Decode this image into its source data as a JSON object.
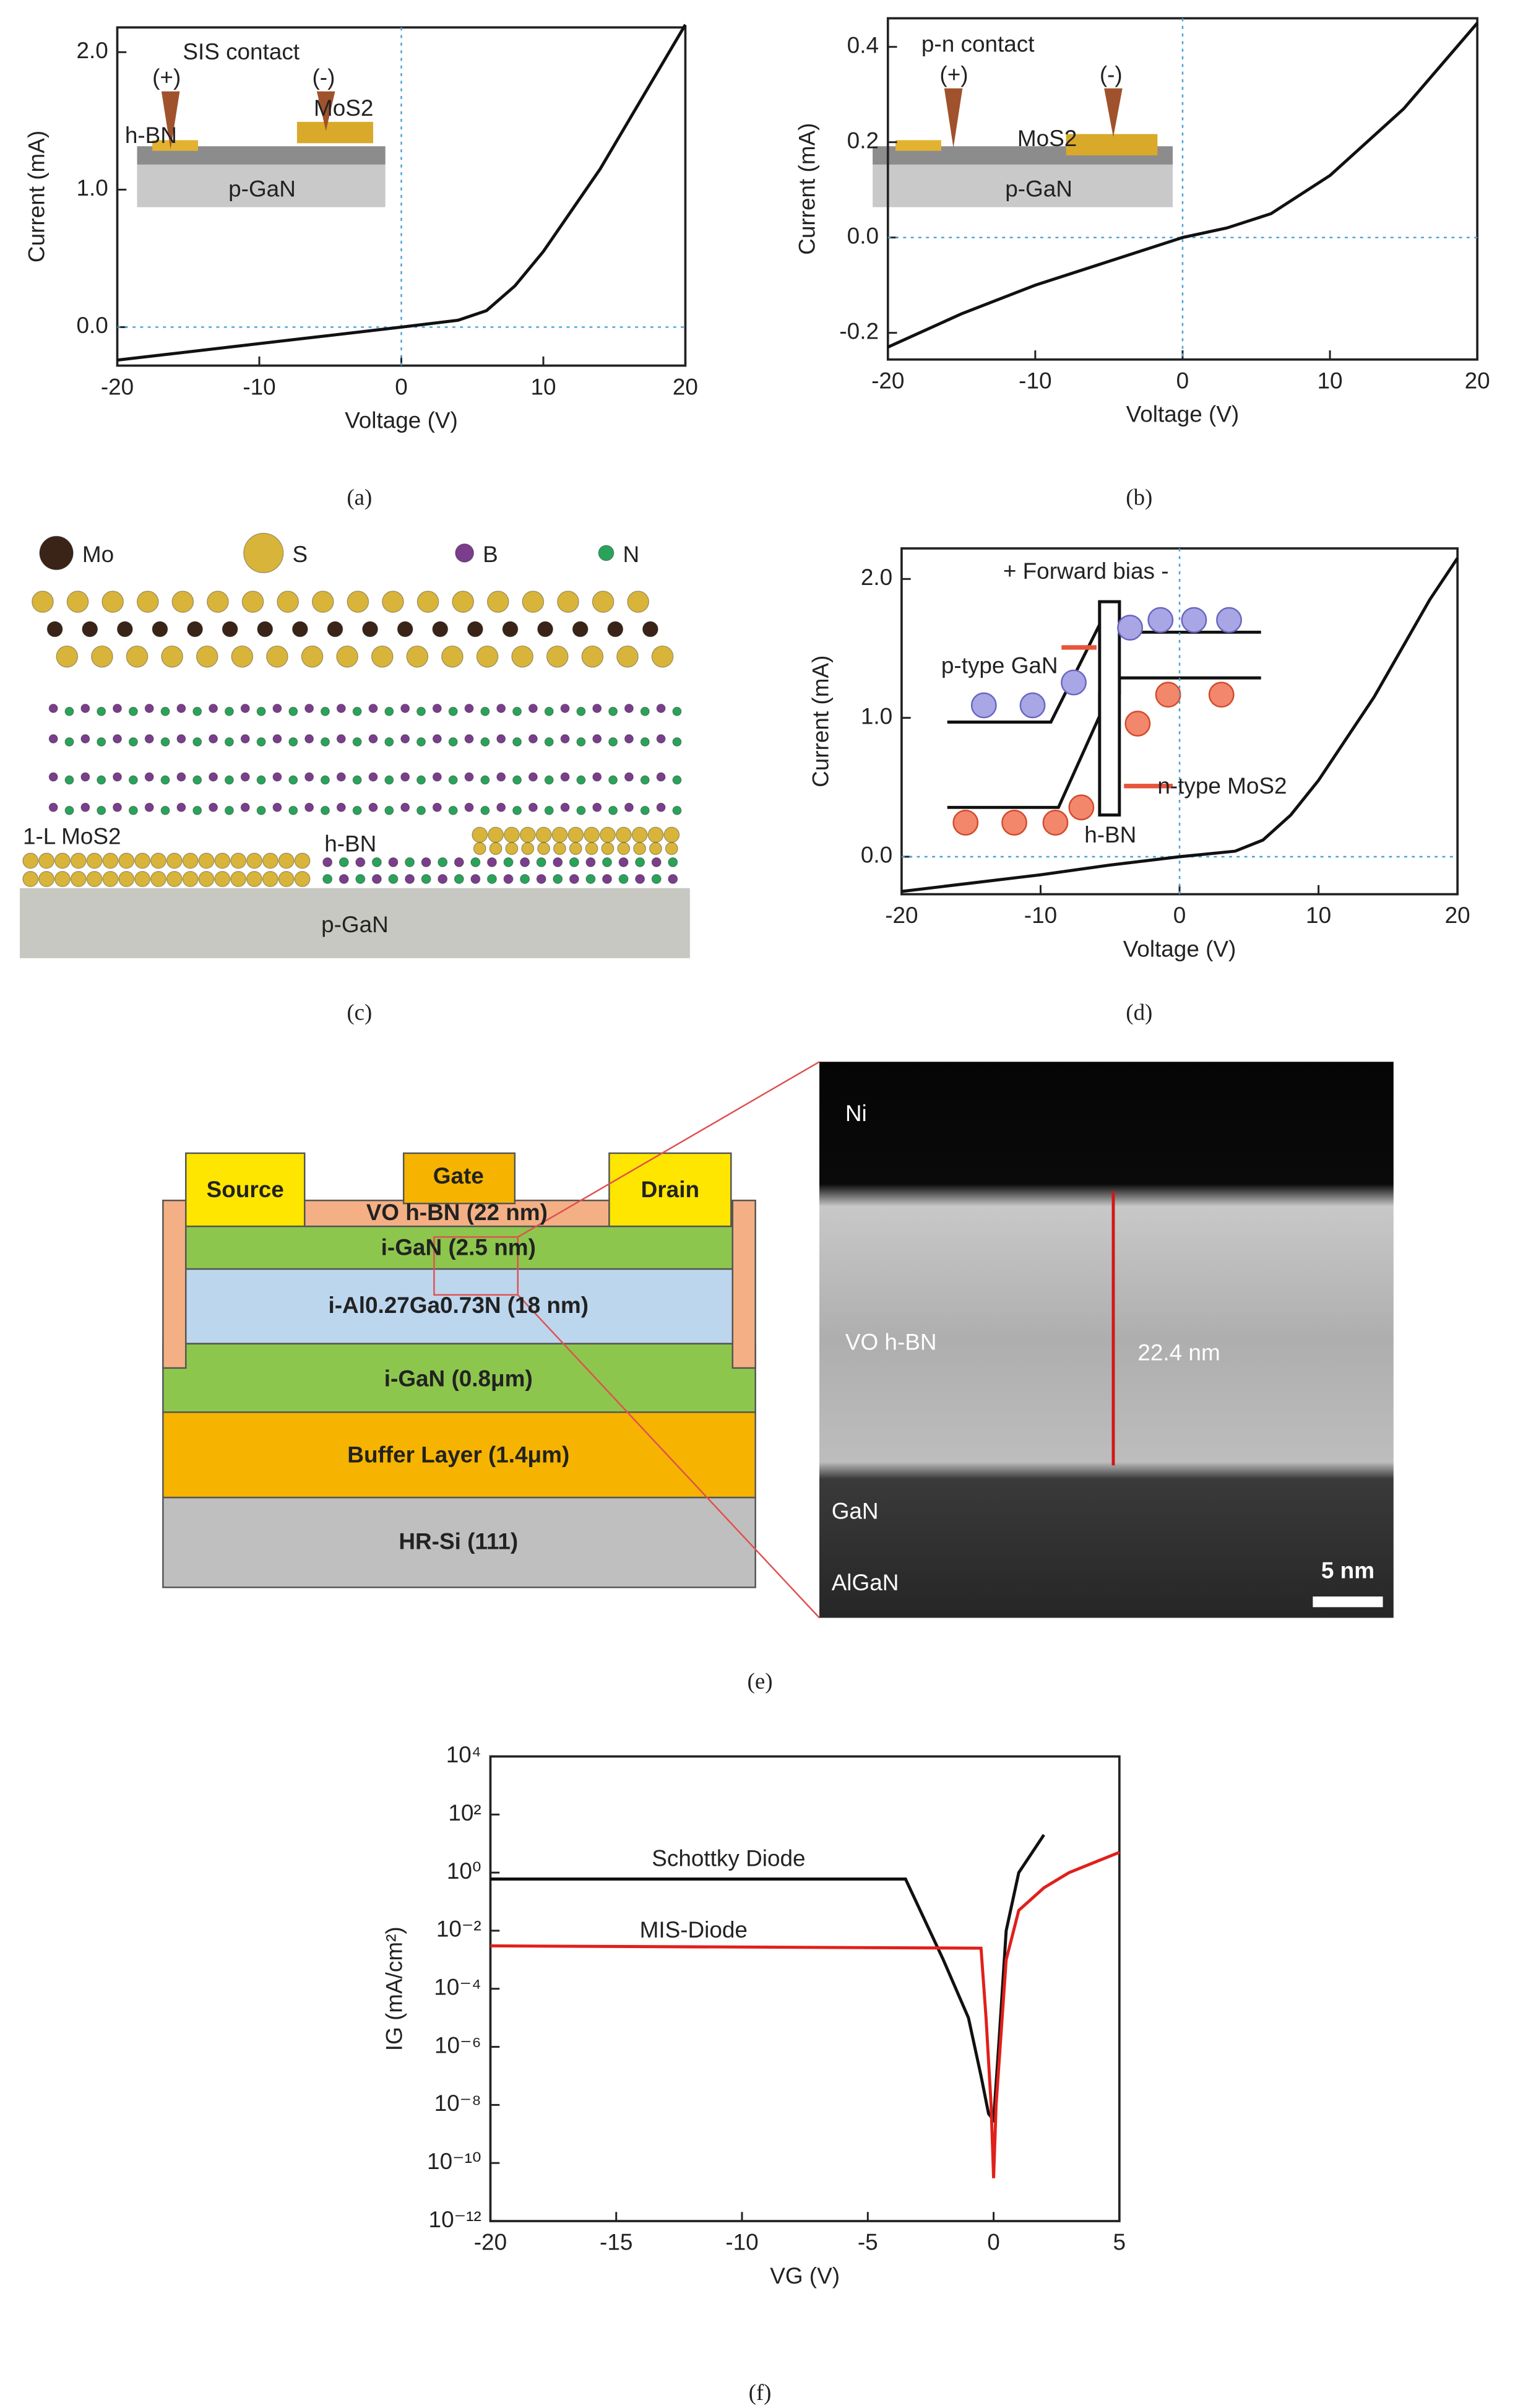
{
  "chart_data": [
    {
      "type": "line",
      "xlabel": "Voltage (V)",
      "ylabel": "Current (mA)",
      "xlim": [
        -20,
        20
      ],
      "ylim": [
        -0.28,
        2.18
      ],
      "xticks": [
        -20,
        -10,
        0,
        10,
        20
      ],
      "yticks": [
        {
          "value": 0,
          "label": "0.0"
        },
        {
          "value": 1,
          "label": "1.0"
        },
        {
          "value": 2,
          "label": "2.0"
        }
      ],
      "crosshair": {
        "x": 0,
        "y": 0
      },
      "x": [
        -20,
        -15,
        -10,
        -5,
        0,
        4,
        6,
        8,
        10,
        12,
        14,
        16,
        18,
        20
      ],
      "series": [
        {
          "color": "#111111",
          "values": [
            -0.24,
            -0.18,
            -0.12,
            -0.06,
            0,
            0.05,
            0.12,
            0.3,
            0.55,
            0.85,
            1.15,
            1.5,
            1.85,
            2.2
          ]
        }
      ],
      "inset_labels": [
        "SIS contact",
        "(+)",
        "(-)",
        "MoS2",
        "h-BN",
        "p-GaN"
      ]
    },
    {
      "type": "line",
      "xlabel": "Voltage (V)",
      "ylabel": "Current (mA)",
      "xlim": [
        -20,
        20
      ],
      "ylim": [
        -0.256,
        0.46
      ],
      "xticks": [
        -20,
        -10,
        0,
        10,
        20
      ],
      "yticks": [
        -0.2,
        {
          "value": 0,
          "label": "0.0"
        },
        0.2,
        0.4
      ],
      "crosshair": {
        "x": 0,
        "y": 0
      },
      "x": [
        -20,
        -15,
        -10,
        -5,
        0,
        3,
        6,
        10,
        15,
        20
      ],
      "series": [
        {
          "color": "#111111",
          "values": [
            -0.23,
            -0.16,
            -0.1,
            -0.05,
            0,
            0.02,
            0.05,
            0.13,
            0.27,
            0.45
          ]
        }
      ],
      "inset_labels": [
        "p-n contact",
        "(+)",
        "(-)",
        "MoS2",
        "p-GaN"
      ]
    },
    {
      "type": "line",
      "xlabel": "Voltage (V)",
      "ylabel": "Current (mA)",
      "xlim": [
        -20,
        20
      ],
      "ylim": [
        -0.27,
        2.22
      ],
      "xticks": [
        -20,
        -10,
        0,
        10,
        20
      ],
      "yticks": [
        {
          "value": 0,
          "label": "0.0"
        },
        {
          "value": 1,
          "label": "1.0"
        },
        {
          "value": 2,
          "label": "2.0"
        }
      ],
      "crosshair": {
        "x": 0,
        "y": 0
      },
      "x": [
        -20,
        -15,
        -10,
        -5,
        0,
        4,
        6,
        8,
        10,
        12,
        14,
        16,
        18,
        20
      ],
      "series": [
        {
          "color": "#111111",
          "values": [
            -0.25,
            -0.19,
            -0.13,
            -0.06,
            0,
            0.04,
            0.12,
            0.3,
            0.55,
            0.85,
            1.15,
            1.5,
            1.85,
            2.15
          ]
        }
      ],
      "inset_labels": [
        "+ Forward bias -",
        "p-type GaN",
        "n-type MoS2",
        "h-BN"
      ]
    },
    {
      "type": "line",
      "log_y": true,
      "xlabel": "VG (V)",
      "ylabel": "IG (mA/cm²)",
      "xlim": [
        -20,
        5
      ],
      "ylim": [
        1e-12,
        10000
      ],
      "xticks": [
        -20,
        -15,
        -10,
        -5,
        0,
        5
      ],
      "yticks": [
        {
          "value": 1e-12,
          "label": "10⁻¹²"
        },
        {
          "value": 1e-10,
          "label": "10⁻¹⁰"
        },
        {
          "value": 1e-08,
          "label": "10⁻⁸"
        },
        {
          "value": 1e-06,
          "label": "10⁻⁶"
        },
        {
          "value": 0.0001,
          "label": "10⁻⁴"
        },
        {
          "value": 0.01,
          "label": "10⁻²"
        },
        {
          "value": 1,
          "label": "10⁰"
        },
        {
          "value": 100,
          "label": "10²"
        },
        {
          "value": 10000,
          "label": "10⁴"
        }
      ],
      "series": [
        {
          "name": "Schottky Diode",
          "color": "#111111",
          "x": [
            -20,
            -3.5,
            -2,
            -1,
            -0.5,
            -0.2,
            0,
            0.2,
            0.5,
            1,
            2
          ],
          "values": [
            0.6,
            0.6,
            0.001,
            1e-05,
            1e-07,
            5e-09,
            3e-09,
            1e-06,
            0.01,
            1,
            20
          ]
        },
        {
          "name": "MIS-Diode",
          "color": "#e0201b",
          "x": [
            -20,
            -0.5,
            -0.3,
            -0.1,
            0,
            0.1,
            0.5,
            1,
            2,
            3,
            5
          ],
          "values": [
            0.003,
            0.0025,
            1e-05,
            1e-08,
            3e-11,
            1e-08,
            0.001,
            0.05,
            0.3,
            1,
            5
          ]
        }
      ]
    }
  ],
  "diagrams": {
    "c": {
      "legend": [
        "Mo",
        "S",
        "B",
        "N"
      ],
      "labels": [
        "1-L MoS2",
        "h-BN",
        "p-GaN"
      ]
    },
    "e": {
      "device": [
        "Source",
        "Gate",
        "Drain",
        "VO h-BN (22 nm)",
        "i-GaN (2.5 nm)",
        "i-Al0.27Ga0.73N (18 nm)",
        "i-GaN (0.8μm)",
        "Buffer Layer (1.4μm)",
        "HR-Si (111)"
      ],
      "tem": [
        "Ni",
        "VO h-BN",
        "22.4 nm",
        "GaN",
        "AlGaN",
        "5 nm"
      ]
    }
  },
  "panel_labels": [
    "(a)",
    "(b)",
    "(c)",
    "(d)",
    "(e)",
    "(f)"
  ]
}
